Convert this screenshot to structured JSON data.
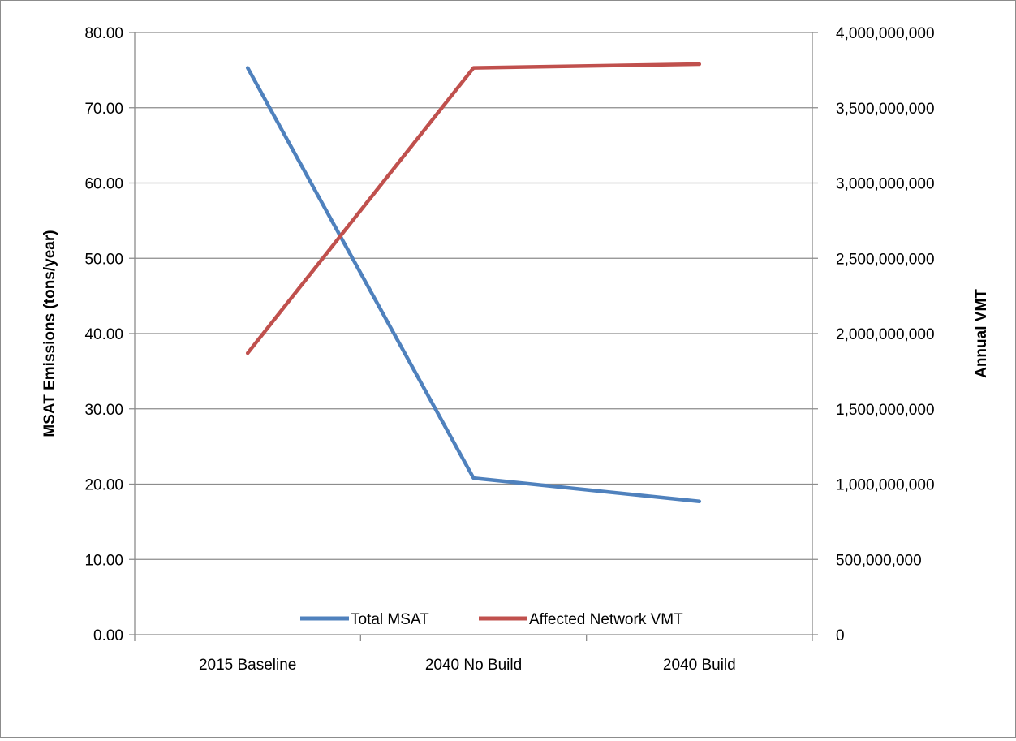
{
  "chart_data": {
    "type": "line",
    "title": "",
    "categories": [
      "2015 Baseline",
      "2040 No Build",
      "2040 Build"
    ],
    "series": [
      {
        "name": "Total MSAT",
        "axis": "left",
        "color": "#4f81bd",
        "values": [
          75.3,
          20.8,
          17.7
        ]
      },
      {
        "name": "Affected Network VMT",
        "axis": "right",
        "color": "#c0504d",
        "values": [
          1870000000,
          3765000000,
          3790000000
        ]
      }
    ],
    "y_left": {
      "label": "MSAT Emissions (tons/year)",
      "min": 0,
      "max": 80,
      "step": 10,
      "tick_labels": [
        "0.00",
        "10.00",
        "20.00",
        "30.00",
        "40.00",
        "50.00",
        "60.00",
        "70.00",
        "80.00"
      ]
    },
    "y_right": {
      "label": "Annual VMT",
      "min": 0,
      "max": 4000000000,
      "step": 500000000,
      "tick_labels": [
        "0",
        "500,000,000",
        "1,000,000,000",
        "1,500,000,000",
        "2,000,000,000",
        "2,500,000,000",
        "3,000,000,000",
        "3,500,000,000",
        "4,000,000,000"
      ]
    },
    "grid": true,
    "legend": "bottom",
    "colors": {
      "grid": "#8c8c8c",
      "axis": "#8c8c8c"
    }
  }
}
